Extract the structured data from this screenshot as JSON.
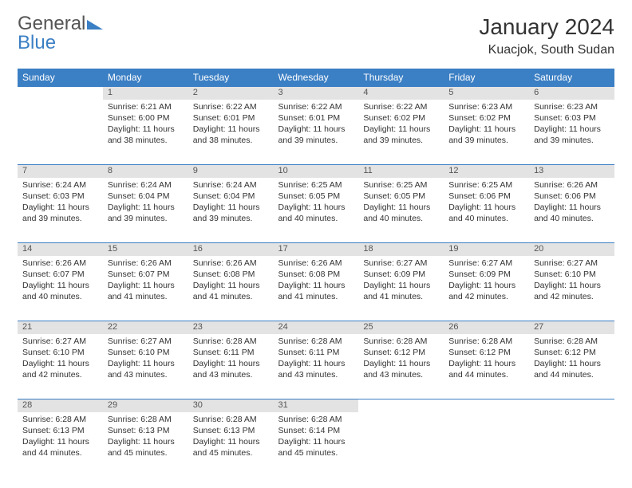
{
  "logo": {
    "word1": "General",
    "word2": "Blue"
  },
  "title": "January 2024",
  "location": "Kuacjok, South Sudan",
  "weekdays": [
    "Sunday",
    "Monday",
    "Tuesday",
    "Wednesday",
    "Thursday",
    "Friday",
    "Saturday"
  ],
  "colors": {
    "header_bg": "#3b7fc4",
    "header_text": "#ffffff",
    "daynum_bg": "#e3e3e3",
    "border": "#3b7fc4",
    "text": "#333333",
    "logo_gray": "#555555",
    "logo_blue": "#3b7fc4"
  },
  "weeks": [
    [
      null,
      {
        "n": "1",
        "sr": "6:21 AM",
        "ss": "6:00 PM",
        "dl": "11 hours and 38 minutes."
      },
      {
        "n": "2",
        "sr": "6:22 AM",
        "ss": "6:01 PM",
        "dl": "11 hours and 38 minutes."
      },
      {
        "n": "3",
        "sr": "6:22 AM",
        "ss": "6:01 PM",
        "dl": "11 hours and 39 minutes."
      },
      {
        "n": "4",
        "sr": "6:22 AM",
        "ss": "6:02 PM",
        "dl": "11 hours and 39 minutes."
      },
      {
        "n": "5",
        "sr": "6:23 AM",
        "ss": "6:02 PM",
        "dl": "11 hours and 39 minutes."
      },
      {
        "n": "6",
        "sr": "6:23 AM",
        "ss": "6:03 PM",
        "dl": "11 hours and 39 minutes."
      }
    ],
    [
      {
        "n": "7",
        "sr": "6:24 AM",
        "ss": "6:03 PM",
        "dl": "11 hours and 39 minutes."
      },
      {
        "n": "8",
        "sr": "6:24 AM",
        "ss": "6:04 PM",
        "dl": "11 hours and 39 minutes."
      },
      {
        "n": "9",
        "sr": "6:24 AM",
        "ss": "6:04 PM",
        "dl": "11 hours and 39 minutes."
      },
      {
        "n": "10",
        "sr": "6:25 AM",
        "ss": "6:05 PM",
        "dl": "11 hours and 40 minutes."
      },
      {
        "n": "11",
        "sr": "6:25 AM",
        "ss": "6:05 PM",
        "dl": "11 hours and 40 minutes."
      },
      {
        "n": "12",
        "sr": "6:25 AM",
        "ss": "6:06 PM",
        "dl": "11 hours and 40 minutes."
      },
      {
        "n": "13",
        "sr": "6:26 AM",
        "ss": "6:06 PM",
        "dl": "11 hours and 40 minutes."
      }
    ],
    [
      {
        "n": "14",
        "sr": "6:26 AM",
        "ss": "6:07 PM",
        "dl": "11 hours and 40 minutes."
      },
      {
        "n": "15",
        "sr": "6:26 AM",
        "ss": "6:07 PM",
        "dl": "11 hours and 41 minutes."
      },
      {
        "n": "16",
        "sr": "6:26 AM",
        "ss": "6:08 PM",
        "dl": "11 hours and 41 minutes."
      },
      {
        "n": "17",
        "sr": "6:26 AM",
        "ss": "6:08 PM",
        "dl": "11 hours and 41 minutes."
      },
      {
        "n": "18",
        "sr": "6:27 AM",
        "ss": "6:09 PM",
        "dl": "11 hours and 41 minutes."
      },
      {
        "n": "19",
        "sr": "6:27 AM",
        "ss": "6:09 PM",
        "dl": "11 hours and 42 minutes."
      },
      {
        "n": "20",
        "sr": "6:27 AM",
        "ss": "6:10 PM",
        "dl": "11 hours and 42 minutes."
      }
    ],
    [
      {
        "n": "21",
        "sr": "6:27 AM",
        "ss": "6:10 PM",
        "dl": "11 hours and 42 minutes."
      },
      {
        "n": "22",
        "sr": "6:27 AM",
        "ss": "6:10 PM",
        "dl": "11 hours and 43 minutes."
      },
      {
        "n": "23",
        "sr": "6:28 AM",
        "ss": "6:11 PM",
        "dl": "11 hours and 43 minutes."
      },
      {
        "n": "24",
        "sr": "6:28 AM",
        "ss": "6:11 PM",
        "dl": "11 hours and 43 minutes."
      },
      {
        "n": "25",
        "sr": "6:28 AM",
        "ss": "6:12 PM",
        "dl": "11 hours and 43 minutes."
      },
      {
        "n": "26",
        "sr": "6:28 AM",
        "ss": "6:12 PM",
        "dl": "11 hours and 44 minutes."
      },
      {
        "n": "27",
        "sr": "6:28 AM",
        "ss": "6:12 PM",
        "dl": "11 hours and 44 minutes."
      }
    ],
    [
      {
        "n": "28",
        "sr": "6:28 AM",
        "ss": "6:13 PM",
        "dl": "11 hours and 44 minutes."
      },
      {
        "n": "29",
        "sr": "6:28 AM",
        "ss": "6:13 PM",
        "dl": "11 hours and 45 minutes."
      },
      {
        "n": "30",
        "sr": "6:28 AM",
        "ss": "6:13 PM",
        "dl": "11 hours and 45 minutes."
      },
      {
        "n": "31",
        "sr": "6:28 AM",
        "ss": "6:14 PM",
        "dl": "11 hours and 45 minutes."
      },
      null,
      null,
      null
    ]
  ],
  "labels": {
    "sunrise": "Sunrise:",
    "sunset": "Sunset:",
    "daylight": "Daylight:"
  }
}
